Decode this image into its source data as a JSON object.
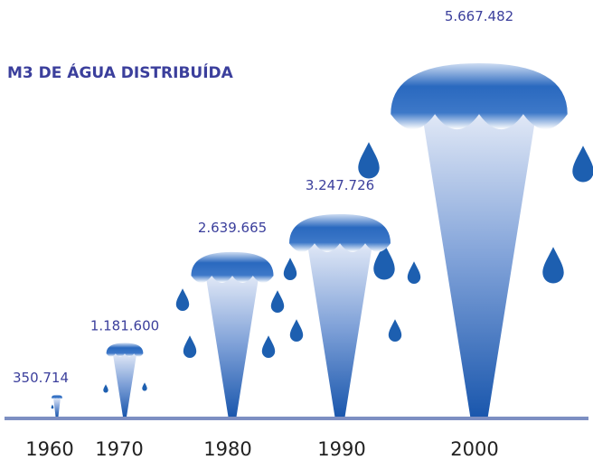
{
  "chart_data": {
    "type": "fountain",
    "title": "M3 DE ÁGUA DISTRIBUÍDA",
    "categories": [
      "1960",
      "1970",
      "1980",
      "1990",
      "2000"
    ],
    "values": [
      350714,
      1181600,
      2639665,
      3247726,
      5667482
    ],
    "value_labels": [
      "350.714",
      "1.181.600",
      "2.639.665",
      "3.247.726",
      "5.667.482"
    ],
    "color": "#1d5fb0"
  }
}
